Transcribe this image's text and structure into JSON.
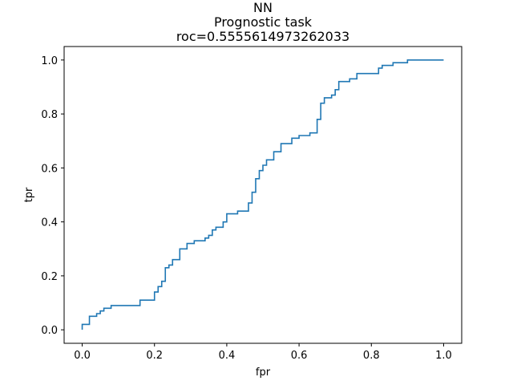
{
  "chart_data": {
    "type": "line",
    "title_lines": [
      "NN",
      "Prognostic task",
      "roc=0.5555614973262033"
    ],
    "xlabel": "fpr",
    "ylabel": "tpr",
    "xlim": [
      -0.05,
      1.05
    ],
    "ylim": [
      -0.05,
      1.05
    ],
    "grid": false,
    "line_color": "#1f77b4",
    "x_ticks": [
      {
        "value": 0.0,
        "label": "0.0"
      },
      {
        "value": 0.2,
        "label": "0.2"
      },
      {
        "value": 0.4,
        "label": "0.4"
      },
      {
        "value": 0.6,
        "label": "0.6"
      },
      {
        "value": 0.8,
        "label": "0.8"
      },
      {
        "value": 1.0,
        "label": "1.0"
      }
    ],
    "y_ticks": [
      {
        "value": 0.0,
        "label": "0.0"
      },
      {
        "value": 0.2,
        "label": "0.2"
      },
      {
        "value": 0.4,
        "label": "0.4"
      },
      {
        "value": 0.6,
        "label": "0.6"
      },
      {
        "value": 0.8,
        "label": "0.8"
      },
      {
        "value": 1.0,
        "label": "1.0"
      }
    ],
    "series": [
      {
        "x": [
          0.0,
          0.0,
          0.0,
          0.02,
          0.02,
          0.04,
          0.04,
          0.05,
          0.05,
          0.06,
          0.06,
          0.08,
          0.08,
          0.1,
          0.1,
          0.16,
          0.16,
          0.2,
          0.2,
          0.21,
          0.21,
          0.22,
          0.22,
          0.23,
          0.23,
          0.24,
          0.24,
          0.25,
          0.25,
          0.27,
          0.27,
          0.29,
          0.29,
          0.31,
          0.31,
          0.34,
          0.34,
          0.35,
          0.35,
          0.36,
          0.36,
          0.37,
          0.37,
          0.39,
          0.39,
          0.4,
          0.4,
          0.43,
          0.43,
          0.46,
          0.46,
          0.47,
          0.47,
          0.48,
          0.48,
          0.49,
          0.49,
          0.5,
          0.5,
          0.51,
          0.51,
          0.53,
          0.53,
          0.55,
          0.55,
          0.58,
          0.58,
          0.6,
          0.6,
          0.63,
          0.63,
          0.65,
          0.65,
          0.66,
          0.66,
          0.67,
          0.67,
          0.69,
          0.69,
          0.7,
          0.7,
          0.71,
          0.71,
          0.74,
          0.74,
          0.76,
          0.76,
          0.82,
          0.82,
          0.83,
          0.83,
          0.86,
          0.86,
          0.9,
          0.9,
          1.0
        ],
        "y": [
          0.0,
          0.01,
          0.02,
          0.02,
          0.05,
          0.05,
          0.06,
          0.06,
          0.07,
          0.07,
          0.08,
          0.08,
          0.09,
          0.09,
          0.09,
          0.09,
          0.11,
          0.11,
          0.14,
          0.14,
          0.16,
          0.16,
          0.18,
          0.18,
          0.23,
          0.23,
          0.24,
          0.24,
          0.26,
          0.26,
          0.3,
          0.3,
          0.32,
          0.32,
          0.33,
          0.33,
          0.34,
          0.34,
          0.35,
          0.35,
          0.37,
          0.37,
          0.38,
          0.38,
          0.4,
          0.4,
          0.43,
          0.43,
          0.44,
          0.44,
          0.47,
          0.47,
          0.51,
          0.51,
          0.56,
          0.56,
          0.59,
          0.59,
          0.61,
          0.61,
          0.63,
          0.63,
          0.66,
          0.66,
          0.69,
          0.69,
          0.71,
          0.71,
          0.72,
          0.72,
          0.73,
          0.73,
          0.78,
          0.78,
          0.84,
          0.84,
          0.86,
          0.86,
          0.87,
          0.87,
          0.89,
          0.89,
          0.92,
          0.92,
          0.93,
          0.93,
          0.95,
          0.95,
          0.97,
          0.97,
          0.98,
          0.98,
          0.99,
          0.99,
          1.0,
          1.0
        ]
      }
    ]
  }
}
